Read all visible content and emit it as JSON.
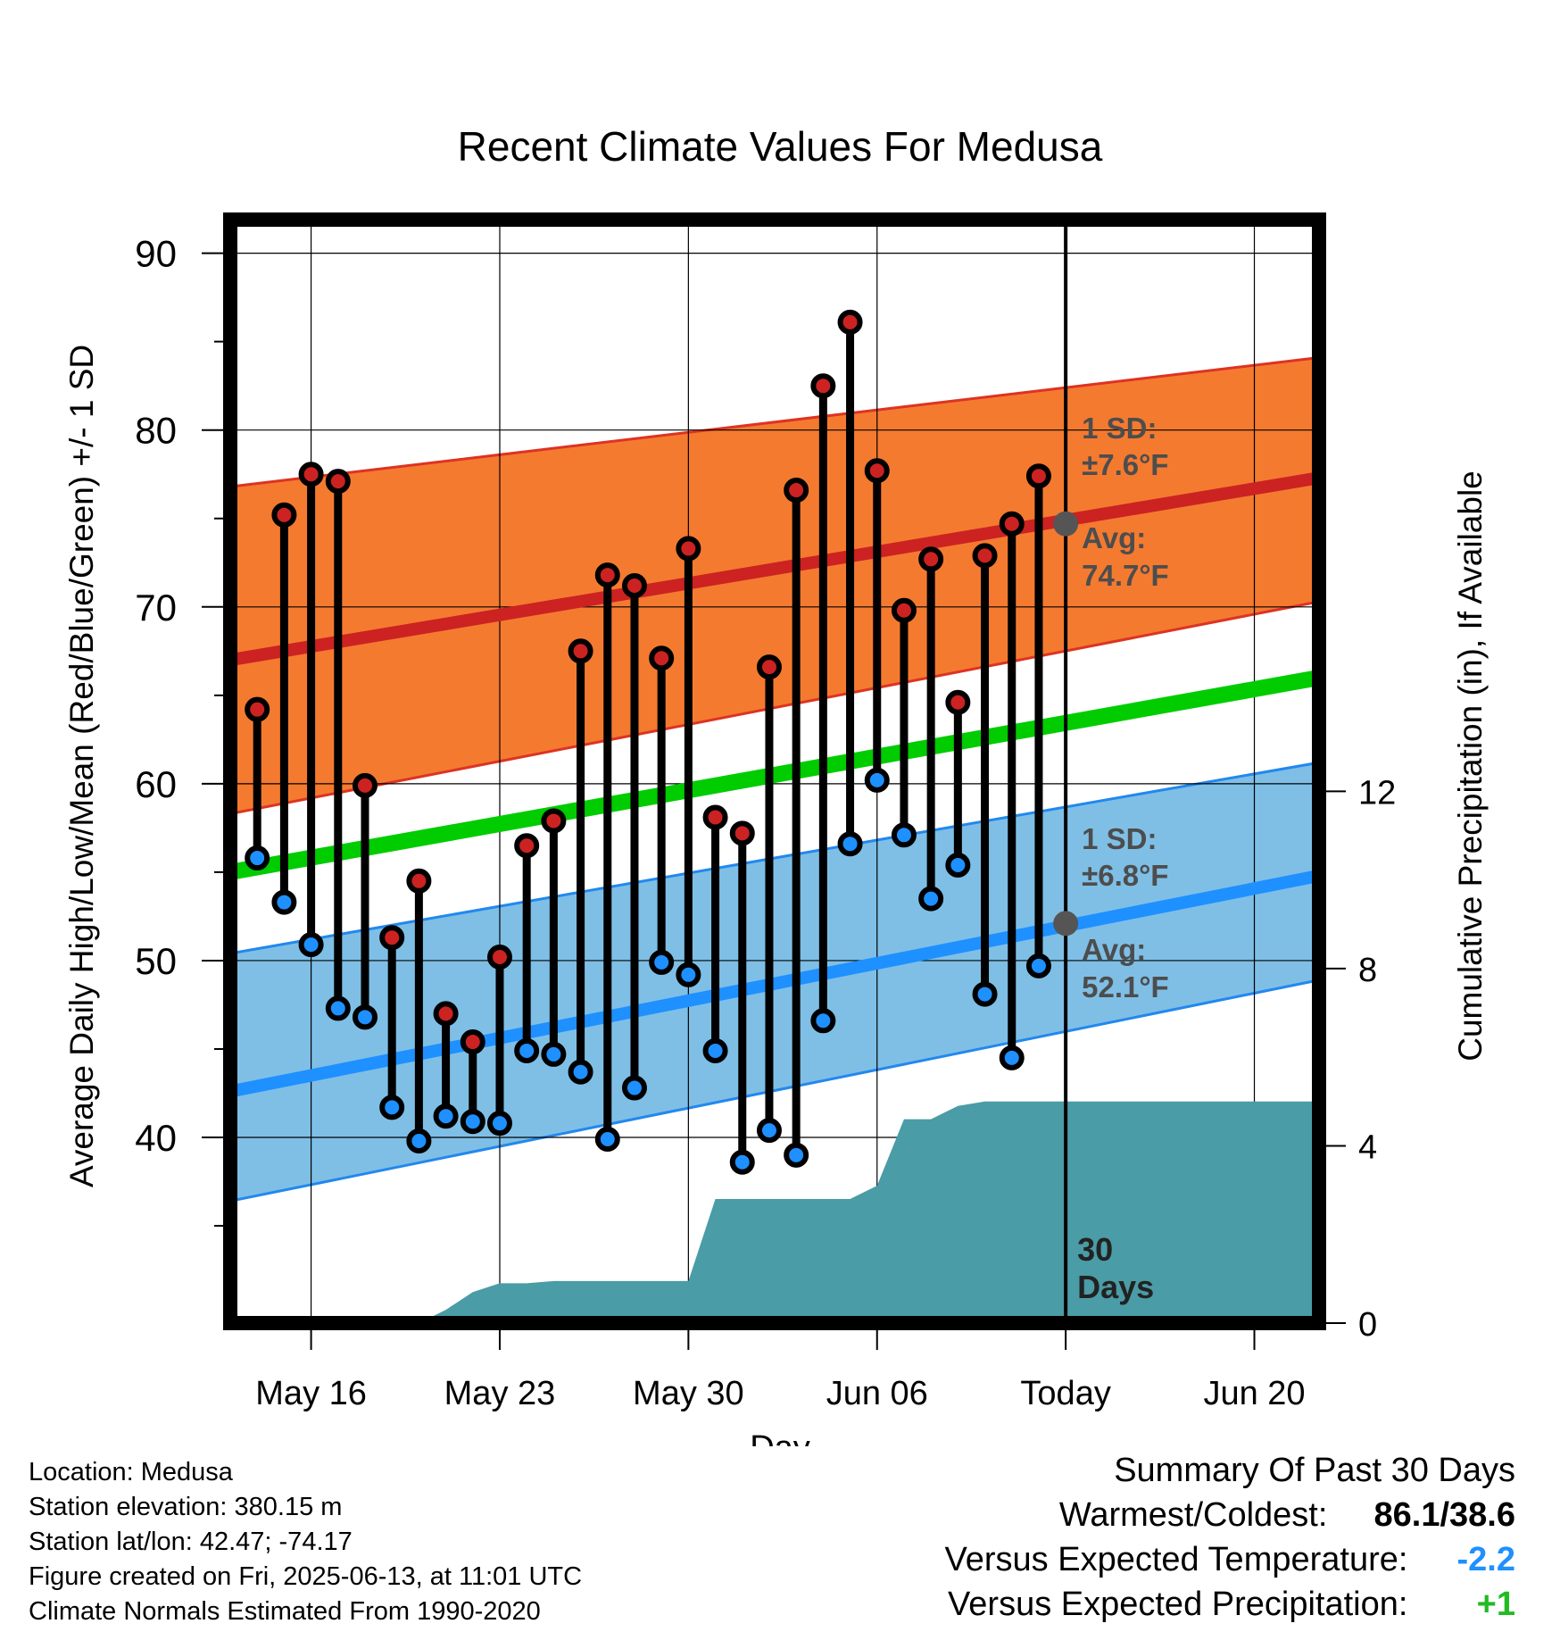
{
  "chart_data": {
    "type": "line",
    "title": "Recent Climate Values For Medusa",
    "xlabel": "Day",
    "ylabel": "Average Daily High/Low/Mean (Red/Blue/Green) +/- 1 SD",
    "y2label": "Cumulative Precipitation (in), If Available",
    "x_ticks": [
      "May 16",
      "May 23",
      "May 30",
      "Jun 06",
      "Today",
      "Jun 20"
    ],
    "x_tick_days": [
      2,
      9,
      16,
      23,
      30,
      37
    ],
    "x_range_days": [
      -1.0,
      39.4
    ],
    "day_zero": "May 14",
    "y_ticks": [
      40,
      50,
      60,
      70,
      80,
      90
    ],
    "ylim": [
      29.5,
      91.9
    ],
    "y2_ticks": [
      0,
      4,
      8,
      12
    ],
    "y2lim": [
      0,
      24.9
    ],
    "grid": true,
    "today_day": 30,
    "today_label": "30\nDays",
    "normals": {
      "high_mean": {
        "start": 67.0,
        "end": 77.3,
        "color": "#cc2222"
      },
      "high_sd": {
        "lower_start": 58.3,
        "lower_end": 70.3,
        "upper_start": 76.8,
        "upper_end": 84.1,
        "color": "#f47a30"
      },
      "low_mean": {
        "start": 42.6,
        "end": 54.8,
        "color": "#1e90ff"
      },
      "low_sd": {
        "lower_start": 36.4,
        "lower_end": 48.9,
        "upper_start": 50.4,
        "upper_end": 61.2,
        "color": "#7fbfe6"
      },
      "mean": {
        "start": 55.0,
        "end": 66.0,
        "color": "#00cc00"
      }
    },
    "annotations": {
      "high_sd_label": [
        "1 SD:",
        "±7.6°F"
      ],
      "high_avg_label": [
        "Avg:",
        "74.7°F"
      ],
      "low_sd_label": [
        "1 SD:",
        "±6.8°F"
      ],
      "low_avg_label": [
        "Avg:",
        "52.1°F"
      ],
      "high_avg_today": 74.7,
      "low_avg_today": 52.1
    },
    "daily": {
      "days": [
        0,
        1,
        2,
        3,
        4,
        5,
        6,
        7,
        8,
        9,
        10,
        11,
        12,
        13,
        14,
        15,
        16,
        17,
        18,
        19,
        20,
        21,
        22,
        23,
        24,
        25,
        26,
        27,
        28,
        29
      ],
      "highs": [
        64.2,
        75.2,
        77.5,
        77.1,
        59.9,
        51.3,
        54.5,
        47.0,
        45.4,
        50.2,
        56.5,
        57.9,
        67.5,
        71.8,
        71.2,
        67.1,
        73.3,
        58.1,
        57.2,
        66.6,
        76.6,
        82.5,
        86.1,
        77.7,
        69.8,
        72.7,
        64.6,
        72.9,
        74.7,
        77.4
      ],
      "lows": [
        55.8,
        53.3,
        50.9,
        47.3,
        46.8,
        41.7,
        39.8,
        41.2,
        40.9,
        40.8,
        44.9,
        44.7,
        43.7,
        39.9,
        42.8,
        49.9,
        49.2,
        44.9,
        38.6,
        40.4,
        39.0,
        46.6,
        56.6,
        60.2,
        57.1,
        53.5,
        55.4,
        48.1,
        44.5,
        49.7
      ],
      "high_color": "#cc2222",
      "low_color": "#1e90ff"
    },
    "precipitation": {
      "color": "#4a9ca6",
      "points": [
        [
          6,
          0.0
        ],
        [
          7,
          0.3
        ],
        [
          8,
          0.7
        ],
        [
          9,
          0.9
        ],
        [
          10,
          0.9
        ],
        [
          11,
          0.95
        ],
        [
          15,
          0.95
        ],
        [
          16,
          0.95
        ],
        [
          17,
          2.8
        ],
        [
          22,
          2.8
        ],
        [
          23,
          3.1
        ],
        [
          24,
          4.6
        ],
        [
          25,
          4.6
        ],
        [
          26,
          4.9
        ],
        [
          27,
          5.0
        ],
        [
          30,
          5.0
        ],
        [
          39.4,
          5.0
        ]
      ]
    }
  },
  "footer_left": [
    "Location: Medusa",
    "Station elevation: 380.15 m",
    "Station lat/lon: 42.47; -74.17",
    "Figure created on Fri, 2025-06-13, at 11:01 UTC",
    "Climate Normals Estimated From 1990-2020"
  ],
  "summary": {
    "title": "Summary Of Past 30 Days",
    "warmest_coldest_label": "Warmest/Coldest:",
    "warmest_coldest_value": "86.1/38.6",
    "temp_label": "Versus Expected Temperature:",
    "temp_value": "-2.2",
    "temp_color": "#1e90ff",
    "precip_label": "Versus Expected Precipitation:",
    "precip_value": "+1",
    "precip_color": "#22bb22"
  }
}
